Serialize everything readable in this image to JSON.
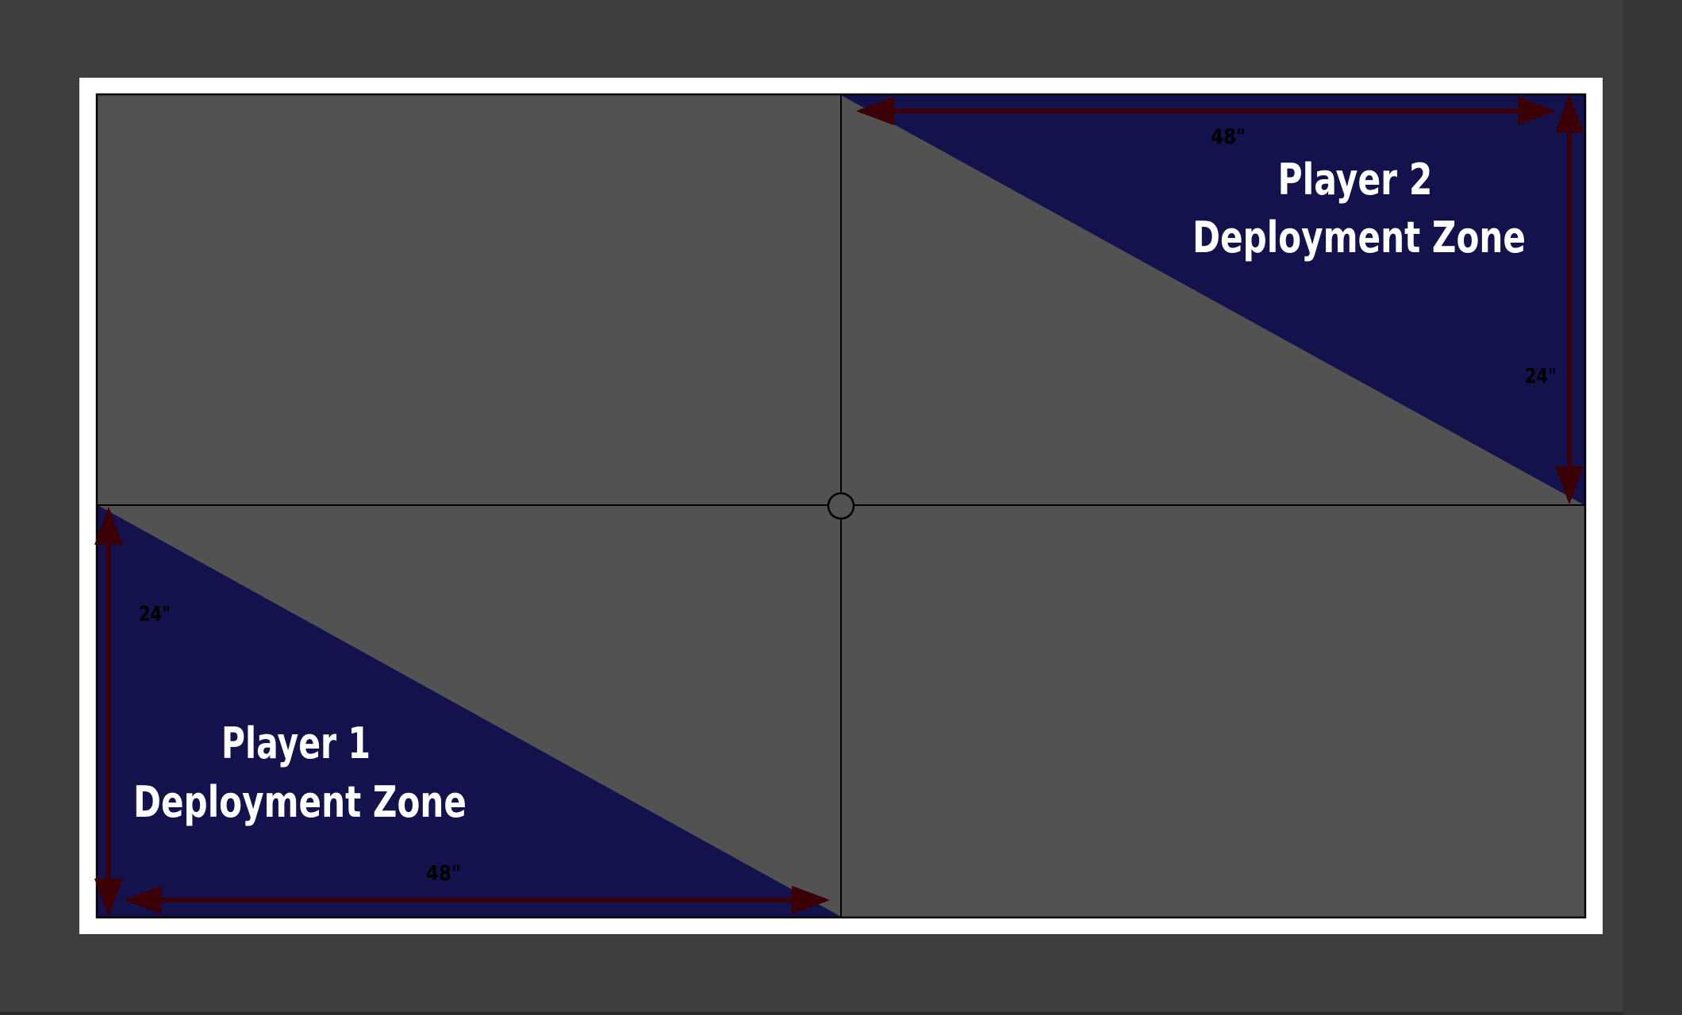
{
  "colors": {
    "background": "#3e3e3e",
    "frame": "#ffffff",
    "table_surface": "#525252",
    "deployment_zone": "#13124d",
    "arrow": "#3a0006",
    "grid_line": "#000000",
    "title_text": "#ffffff",
    "dimension_text": "#000000"
  },
  "player2_zone": {
    "title_line1": "Player 2",
    "title_line2": "Deployment Zone",
    "width_label": "48\"",
    "height_label": "24\""
  },
  "player1_zone": {
    "title_line1": "Player 1",
    "title_line2": "Deployment Zone",
    "width_label": "48\"",
    "height_label": "24\""
  },
  "center_marker": {
    "icon": "center-circle-icon"
  }
}
